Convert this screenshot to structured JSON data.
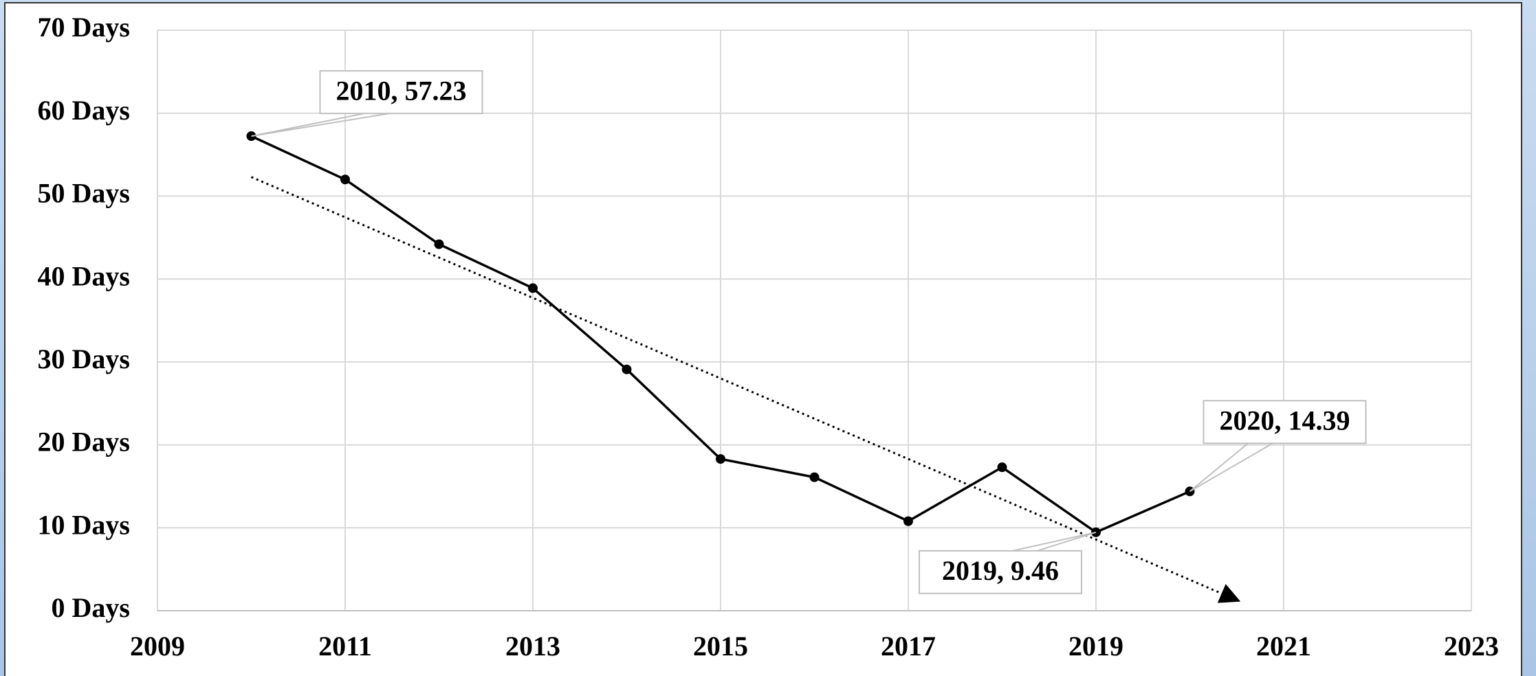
{
  "chart_data": {
    "type": "line",
    "x": [
      2010,
      2011,
      2012,
      2013,
      2014,
      2015,
      2016,
      2017,
      2018,
      2019,
      2020
    ],
    "values": [
      57.23,
      52.0,
      44.2,
      38.9,
      29.1,
      18.3,
      16.1,
      10.8,
      17.3,
      9.46,
      14.39
    ],
    "value_labels": [
      "2010, 57.23",
      null,
      null,
      null,
      null,
      null,
      null,
      null,
      null,
      "2019, 9.46",
      "2020, 14.39"
    ],
    "color": "#000000",
    "trendline": {
      "x": [
        2010,
        2020.5
      ],
      "values": [
        52.3,
        1.3
      ],
      "color": "#000000"
    },
    "xlim": [
      2009,
      2023
    ],
    "xticks": [
      2009,
      2011,
      2013,
      2015,
      2017,
      2019,
      2021,
      2023
    ],
    "ylim": [
      0,
      70
    ],
    "yticks": [
      {
        "value": 0,
        "label": "0 Days"
      },
      {
        "value": 10,
        "label": "10 Days"
      },
      {
        "value": 20,
        "label": "20 Days"
      },
      {
        "value": 30,
        "label": "30 Days"
      },
      {
        "value": 40,
        "label": "40 Days"
      },
      {
        "value": 50,
        "label": "50 Days"
      },
      {
        "value": 60,
        "label": "60 Days"
      },
      {
        "value": 70,
        "label": "70 Days"
      }
    ],
    "grid": true
  }
}
